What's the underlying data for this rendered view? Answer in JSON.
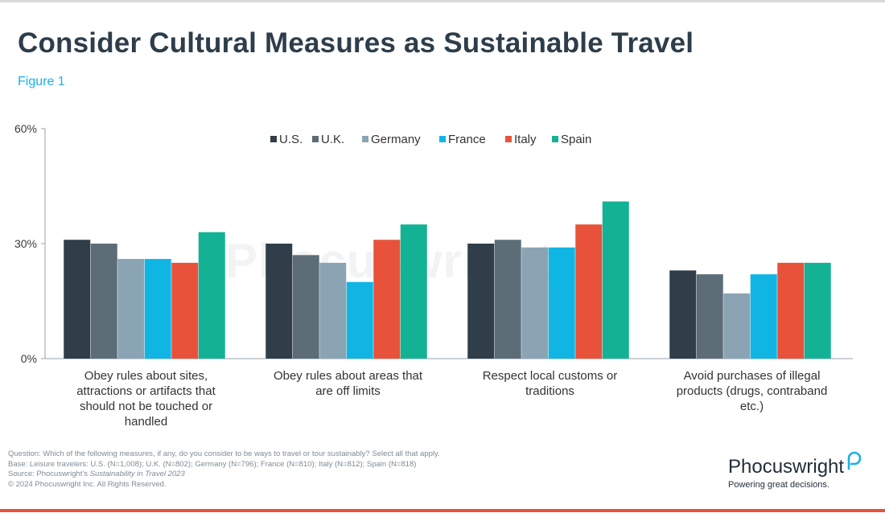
{
  "header": {
    "title": "Consider Cultural Measures as Sustainable Travel",
    "figure_label": "Figure 1"
  },
  "watermark": "Phocuswright",
  "chart_data": {
    "type": "bar",
    "title": "Consider Cultural Measures as Sustainable Travel",
    "xlabel": "",
    "ylabel": "",
    "ylim": [
      0,
      60
    ],
    "yticks": [
      "0%",
      "30%",
      "60%"
    ],
    "ytick_values": [
      0,
      30,
      60
    ],
    "grid": false,
    "legend_position": "top-center",
    "categories": [
      [
        "Obey rules about sites,",
        "attractions or artifacts that",
        "should not be touched or",
        "handled"
      ],
      [
        "Obey rules about areas that",
        "are off limits"
      ],
      [
        "Respect local customs or",
        "traditions"
      ],
      [
        "Avoid purchases of illegal",
        "products (drugs, contraband",
        "etc.)"
      ]
    ],
    "series": [
      {
        "name": "U.S.",
        "color": "#2f3e48",
        "values": [
          31,
          30,
          30,
          23
        ]
      },
      {
        "name": "U.K.",
        "color": "#5c6d78",
        "values": [
          30,
          27,
          31,
          22
        ]
      },
      {
        "name": "Germany",
        "color": "#8aa4b4",
        "values": [
          26,
          25,
          29,
          17
        ]
      },
      {
        "name": "France",
        "color": "#11b5e4",
        "values": [
          26,
          20,
          29,
          22
        ]
      },
      {
        "name": "Italy",
        "color": "#e8523a",
        "values": [
          25,
          31,
          35,
          25
        ]
      },
      {
        "name": "Spain",
        "color": "#13b295",
        "values": [
          33,
          35,
          41,
          25
        ]
      }
    ]
  },
  "footer": {
    "question": "Question: Which of the following measures, if any, do you consider to be ways to travel or tour sustainably? Select all that apply.",
    "base": "Base: Leisure travelers: U.S. (N=1,008); U.K. (N=802); Germany (N=796); France (N=810); Italy (N=812); Spain (N=818)",
    "source_prefix": "Source: Phocuswright's ",
    "source_title": "Sustainability in Travel 2023",
    "copyright": "© 2024 Phocuswright Inc. All Rights Reserved."
  },
  "brand": {
    "name": "Phocuswright",
    "tagline": "Powering great decisions."
  }
}
